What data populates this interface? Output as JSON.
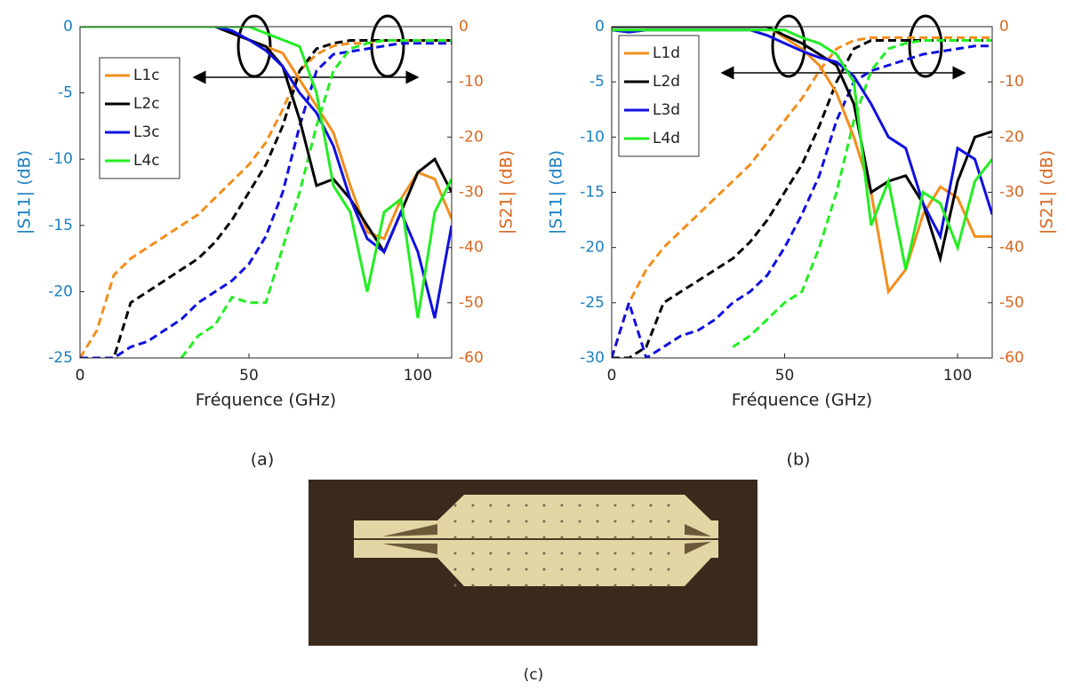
{
  "chart_data": [
    {
      "type": "line",
      "label": "(a)",
      "xlabel": "Fréquence (GHz)",
      "ylabel": "|S11| (dB)",
      "y2label": "|S21| (dB)",
      "xlim": [
        0,
        110
      ],
      "xticks": [
        0,
        50,
        100
      ],
      "ylim": [
        -25,
        0
      ],
      "yticks": [
        0,
        -5,
        -10,
        -15,
        -20,
        -25
      ],
      "y2lim": [
        -60,
        0
      ],
      "y2ticks": [
        0,
        -10,
        -20,
        -30,
        -40,
        -50,
        -60
      ],
      "legend": "upper left",
      "grid": false,
      "x": [
        0,
        5,
        10,
        15,
        20,
        25,
        30,
        35,
        40,
        45,
        50,
        55,
        60,
        65,
        70,
        75,
        80,
        85,
        90,
        95,
        100,
        105,
        110
      ],
      "series": [
        {
          "name": "L1c",
          "color": "#f28e1c",
          "s11": [
            0,
            0,
            0,
            0,
            0,
            0,
            0,
            0,
            0,
            -0.5,
            -1,
            -1.5,
            -2,
            -4,
            -6,
            -8,
            -12,
            -15.5,
            -16,
            -13,
            -11,
            -11.5,
            -14.5
          ],
          "s21": [
            -60,
            -55,
            -45,
            -42,
            -40,
            -38,
            -36,
            -34,
            -31,
            -28,
            -25,
            -21,
            -15,
            -8,
            -5,
            -3.5,
            -3,
            -3,
            -2.5,
            -2.5,
            -2.5,
            -2.5,
            -2.5
          ]
        },
        {
          "name": "L2c",
          "color": "#000000",
          "s11": [
            0,
            0,
            0,
            0,
            0,
            0,
            0,
            0,
            0,
            -0.5,
            -1,
            -1.5,
            -3,
            -7,
            -12,
            -11.5,
            -13,
            -15,
            -17,
            -14,
            -11,
            -10,
            -12.5
          ],
          "s21": [
            -60,
            -60,
            -60,
            -50,
            -48,
            -46,
            -44,
            -42,
            -39,
            -35,
            -30,
            -25,
            -18,
            -8,
            -4,
            -3,
            -2.5,
            -2.5,
            -2.5,
            -2.5,
            -2.5,
            -2.5,
            -2.5
          ]
        },
        {
          "name": "L3c",
          "color": "#1010e0",
          "s11": [
            0,
            0,
            0,
            0,
            0,
            0,
            0,
            0,
            0,
            -0.3,
            -1,
            -1.8,
            -3,
            -5,
            -6.5,
            -9,
            -13,
            -16,
            -17,
            -14,
            -17,
            -22,
            -15
          ],
          "s21": [
            -60,
            -60,
            -60,
            -58,
            -57,
            -55,
            -53,
            -50,
            -48,
            -46,
            -43,
            -38,
            -30,
            -18,
            -8,
            -5,
            -4.5,
            -4,
            -3.5,
            -3,
            -3,
            -3,
            -3
          ]
        },
        {
          "name": "L4c",
          "color": "#22ee22",
          "s11": [
            0,
            0,
            0,
            0,
            0,
            0,
            0,
            0,
            0,
            0,
            0,
            -0.5,
            -1,
            -1.5,
            -5,
            -12,
            -14,
            -20,
            -14,
            -13,
            -22,
            -14,
            -11.5
          ],
          "s21": [
            null,
            null,
            null,
            null,
            null,
            null,
            -60,
            -56,
            -54,
            -49,
            -50,
            -50,
            -40,
            -30,
            -18,
            -8,
            -4,
            -3,
            -2.5,
            -2.5,
            -2.5,
            -2.5,
            -2.5
          ]
        }
      ]
    },
    {
      "type": "line",
      "label": "(b)",
      "xlabel": "Fréquence (GHz)",
      "ylabel": "|S11| (dB)",
      "y2label": "|S21| (dB)",
      "xlim": [
        0,
        110
      ],
      "xticks": [
        0,
        50,
        100
      ],
      "ylim": [
        -30,
        0
      ],
      "yticks": [
        0,
        -5,
        -10,
        -15,
        -20,
        -25,
        -30
      ],
      "y2lim": [
        -60,
        0
      ],
      "y2ticks": [
        0,
        -10,
        -20,
        -30,
        -40,
        -50,
        -60
      ],
      "legend": "upper left",
      "grid": false,
      "x": [
        0,
        5,
        10,
        15,
        20,
        25,
        30,
        35,
        40,
        45,
        50,
        55,
        60,
        65,
        70,
        75,
        80,
        85,
        90,
        95,
        100,
        105,
        110
      ],
      "series": [
        {
          "name": "L1d",
          "color": "#f28e1c",
          "s11": [
            0,
            0,
            0,
            0,
            0,
            0,
            0,
            0,
            0,
            0,
            -1,
            -2,
            -3.5,
            -6,
            -10,
            -15,
            -24,
            -22,
            -17,
            -14.5,
            -15.5,
            -19,
            -19
          ],
          "s21": [
            -60,
            -50,
            -44,
            -40,
            -37,
            -34,
            -31,
            -28,
            -25,
            -21,
            -17,
            -13,
            -8,
            -4,
            -2.5,
            -2,
            -2,
            -2,
            -2,
            -2,
            -2,
            -2,
            -2
          ]
        },
        {
          "name": "L2d",
          "color": "#000000",
          "s11": [
            0,
            0,
            0,
            0,
            0,
            0,
            0,
            0,
            0,
            0,
            -0.8,
            -1.5,
            -2.5,
            -3.5,
            -7,
            -15,
            -14,
            -13.5,
            -16,
            -21,
            -14,
            -10,
            -9.5
          ],
          "s21": [
            -60,
            -60,
            -58,
            -50,
            -48,
            -46,
            -44,
            -42,
            -39,
            -35,
            -30,
            -25,
            -18,
            -10,
            -4,
            -2.5,
            -2.5,
            -2.5,
            -2.5,
            -2.5,
            -2.5,
            -2.5,
            -2.5
          ]
        },
        {
          "name": "L3d",
          "color": "#1010e0",
          "s11": [
            -0.3,
            -0.5,
            -0.3,
            -0.3,
            -0.3,
            -0.3,
            -0.3,
            -0.3,
            -0.3,
            -0.8,
            -1.5,
            -2.2,
            -2.8,
            -3.2,
            -4.5,
            -7,
            -10,
            -11,
            -16,
            -19,
            -11,
            -12,
            -17
          ],
          "s21": [
            -60,
            -50,
            -60,
            -58,
            -56,
            -55,
            -53,
            -50,
            -48,
            -45,
            -40,
            -34,
            -27,
            -17,
            -10,
            -8,
            -7,
            -6,
            -5,
            -4.5,
            -4,
            -3.5,
            -3.5
          ]
        },
        {
          "name": "L4d",
          "color": "#22ee22",
          "s11": [
            -0.3,
            -0.3,
            -0.3,
            -0.3,
            -0.3,
            -0.3,
            -0.3,
            -0.3,
            -0.3,
            -0.3,
            -0.3,
            -1,
            -1.5,
            -2.5,
            -5,
            -18,
            -14,
            -22,
            -15,
            -16,
            -20,
            -14,
            -12
          ],
          "s21": [
            null,
            null,
            null,
            null,
            null,
            null,
            null,
            -58,
            -56,
            -53,
            -50,
            -48,
            -40,
            -30,
            -17,
            -8,
            -4,
            -3,
            -2.5,
            -2.5,
            -2.5,
            -2.5,
            -2.5
          ]
        }
      ]
    }
  ],
  "photo": {
    "label": "(c)"
  }
}
